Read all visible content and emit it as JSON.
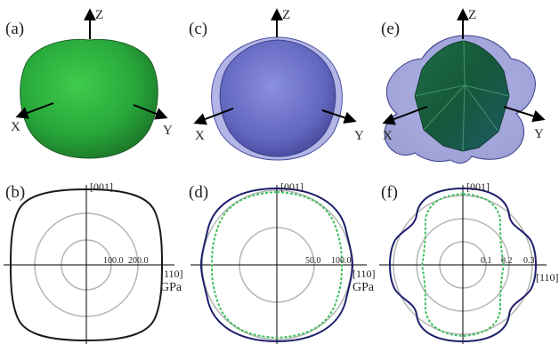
{
  "panels": {
    "a": {
      "label": "(a)"
    },
    "b": {
      "label": "(b)"
    },
    "c": {
      "label": "(c)"
    },
    "d": {
      "label": "(d)"
    },
    "e": {
      "label": "(e)"
    },
    "f": {
      "label": "(f)"
    }
  },
  "axes3d": {
    "x": "X",
    "y": "Y",
    "z": "Z"
  },
  "polar": {
    "top_dir": "[001]",
    "right_dir": "[110]",
    "b": {
      "ticks": [
        "100.0",
        "200.0"
      ],
      "unit": "GPa"
    },
    "d": {
      "ticks": [
        "50.0",
        "100.0"
      ],
      "unit": "GPa"
    },
    "f": {
      "ticks": [
        "0.1",
        "0.2",
        "0.3"
      ]
    }
  },
  "colors": {
    "green_surface": "#2fa43a",
    "blue_surface": "#6f74c9",
    "curve_dark": "#1f1f6e",
    "curve_green": "#3cbf5a",
    "circle_grey": "#b5b5b5"
  }
}
